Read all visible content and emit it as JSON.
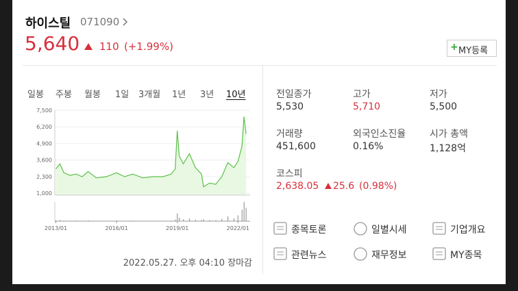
{
  "header": {
    "name": "하이스틸",
    "code": "071090",
    "button": "MY등록"
  },
  "price": {
    "value": "5,640",
    "change": "110",
    "rate": "(+1.99%)"
  },
  "tabs": [
    "일봉",
    "주봉",
    "월봉",
    "1일",
    "3개월",
    "1년",
    "3년",
    "10년"
  ],
  "selected_tab": 7,
  "chart_data": {
    "type": "line",
    "x": [
      2013.0,
      2013.2,
      2013.4,
      2013.7,
      2014.0,
      2014.3,
      2014.6,
      2015.0,
      2015.5,
      2016.0,
      2016.4,
      2016.8,
      2017.3,
      2017.8,
      2018.3,
      2018.7,
      2018.9,
      2019.0,
      2019.1,
      2019.3,
      2019.6,
      2019.9,
      2020.2,
      2020.3,
      2020.6,
      2020.9,
      2021.2,
      2021.5,
      2021.8,
      2022.0,
      2022.2,
      2022.3,
      2022.4
    ],
    "series": [
      {
        "name": "price",
        "color": "#5cc04a",
        "values": [
          2900,
          3300,
          2600,
          2400,
          2500,
          2300,
          2700,
          2200,
          2300,
          2600,
          2300,
          2500,
          2200,
          2300,
          2300,
          2500,
          2900,
          5900,
          3900,
          3300,
          4100,
          3000,
          2500,
          1500,
          1800,
          1700,
          2300,
          3400,
          3000,
          3500,
          4700,
          7000,
          5640
        ]
      },
      {
        "name": "volume",
        "color": "#999999",
        "axis": "y2",
        "values": [
          4,
          6,
          3,
          2,
          3,
          2,
          4,
          2,
          2,
          3,
          2,
          3,
          2,
          2,
          2,
          3,
          8,
          40,
          18,
          10,
          14,
          8,
          6,
          10,
          6,
          5,
          12,
          25,
          15,
          30,
          60,
          100,
          70
        ]
      }
    ],
    "xlim": [
      2012.95,
      2022.6
    ],
    "xticks": [
      {
        "value": 2013,
        "label": "2013/01"
      },
      {
        "value": 2016,
        "label": "2016/01"
      },
      {
        "value": 2019,
        "label": "2019/01"
      },
      {
        "value": 2022,
        "label": "2022/01"
      }
    ],
    "ylim": [
      850,
      7500
    ],
    "yticks": [
      {
        "value": 1000,
        "label": "1,000"
      },
      {
        "value": 2300,
        "label": "2,300"
      },
      {
        "value": 3600,
        "label": "3,600"
      },
      {
        "value": 4900,
        "label": "4,900"
      },
      {
        "value": 6200,
        "label": "6,200"
      },
      {
        "value": 7500,
        "label": "7,500"
      }
    ],
    "y2lim": [
      0,
      100
    ],
    "grid": true
  },
  "timestamp": "2022.05.27. 오후 04:10 장마감",
  "stats": [
    {
      "label": "전일종가",
      "value": "5,530",
      "color": "#333333"
    },
    {
      "label": "고가",
      "value": "5,710",
      "color": "#d6303c"
    },
    {
      "label": "저가",
      "value": "5,500",
      "color": "#333333"
    },
    {
      "label": "거래량",
      "value": "451,600",
      "color": "#333333"
    },
    {
      "label": "외국인소진율",
      "value": "0.16%",
      "color": "#333333"
    },
    {
      "label": "시가 총액",
      "value": "1,128억",
      "color": "#333333"
    }
  ],
  "kospi": {
    "label": "코스피",
    "value": "2,638.05",
    "change": "25.6",
    "rate": "(0.98%)"
  },
  "links": [
    "종목토론",
    "일별시세",
    "기업개요",
    "관련뉴스",
    "재무정보",
    "MY종목"
  ]
}
